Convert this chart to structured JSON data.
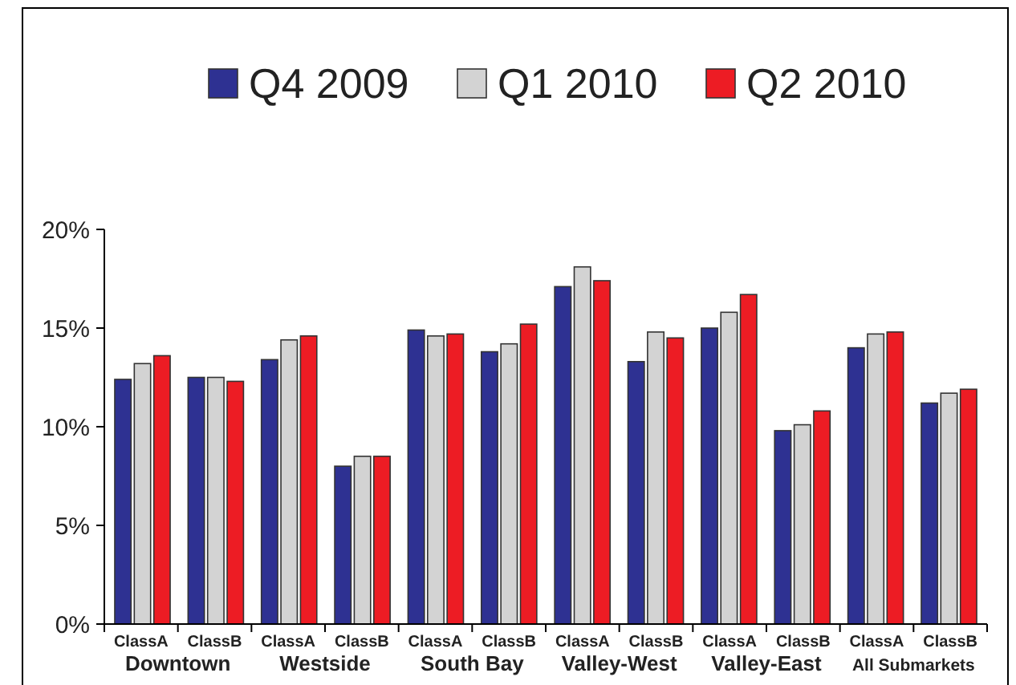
{
  "chart_data": {
    "type": "bar",
    "categories": [
      "ClassA",
      "ClassB",
      "ClassA",
      "ClassB",
      "ClassA",
      "ClassB",
      "ClassA",
      "ClassB",
      "ClassA",
      "ClassB",
      "ClassA",
      "ClassB"
    ],
    "annotations": [
      "Downtown",
      "Westside",
      "South Bay",
      "Valley-West",
      "Valley-East",
      "All Submarkets"
    ],
    "series": [
      {
        "name": "Q4 2009",
        "color": "#2e3192",
        "values": [
          12.4,
          12.5,
          13.4,
          8.0,
          14.9,
          13.8,
          17.1,
          13.3,
          15.0,
          9.8,
          14.0,
          11.2
        ]
      },
      {
        "name": "Q1 2010",
        "color": "#d3d3d3",
        "values": [
          13.2,
          12.5,
          14.4,
          8.5,
          14.6,
          14.2,
          18.1,
          14.8,
          15.8,
          10.1,
          14.7,
          11.7
        ]
      },
      {
        "name": "Q2 2010",
        "color": "#ed1c24",
        "values": [
          13.6,
          12.3,
          14.6,
          8.5,
          14.7,
          15.2,
          17.4,
          14.5,
          16.7,
          10.8,
          14.8,
          11.9
        ]
      }
    ],
    "ylim": [
      0,
      20
    ],
    "yticks": [
      {
        "value": 0,
        "label": "0%"
      },
      {
        "value": 5,
        "label": "5%"
      },
      {
        "value": 10,
        "label": "10%"
      },
      {
        "value": 15,
        "label": "15%"
      },
      {
        "value": 20,
        "label": "20%"
      }
    ],
    "grid": false,
    "legend": "top"
  }
}
